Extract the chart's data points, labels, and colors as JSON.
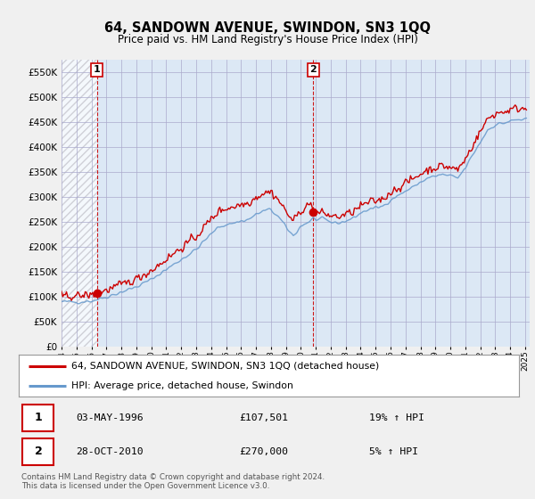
{
  "title": "64, SANDOWN AVENUE, SWINDON, SN3 1QQ",
  "subtitle": "Price paid vs. HM Land Registry's House Price Index (HPI)",
  "legend_line1": "64, SANDOWN AVENUE, SWINDON, SN3 1QQ (detached house)",
  "legend_line2": "HPI: Average price, detached house, Swindon",
  "table_row1_date": "03-MAY-1996",
  "table_row1_price": "£107,501",
  "table_row1_hpi": "19% ↑ HPI",
  "table_row2_date": "28-OCT-2010",
  "table_row2_price": "£270,000",
  "table_row2_hpi": "5% ↑ HPI",
  "footnote": "Contains HM Land Registry data © Crown copyright and database right 2024.\nThis data is licensed under the Open Government Licence v3.0.",
  "red_color": "#cc0000",
  "blue_color": "#6699cc",
  "grid_color": "#aaaacc",
  "bg_color": "#f0f0f0",
  "plot_bg_color": "#dce8f5",
  "hatch_color": "#c0c0c8",
  "ylim": [
    0,
    575000
  ],
  "yticks": [
    0,
    50000,
    100000,
    150000,
    200000,
    250000,
    300000,
    350000,
    400000,
    450000,
    500000,
    550000
  ],
  "purchase1_year": 1996.37,
  "purchase1_price": 107501,
  "purchase2_year": 2010.83,
  "purchase2_price": 270000,
  "xmin": 1994.0,
  "xmax": 2025.3
}
